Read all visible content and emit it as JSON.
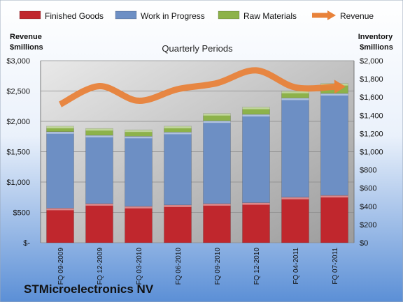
{
  "company": "STMicroelectronics NV",
  "chart_data": {
    "type": "bar",
    "stacked": true,
    "title": "Quarterly Periods",
    "ylabel_left": "Revenue\n$millions",
    "ylabel_right": "Inventory\n$millions",
    "categories": [
      "FQ 09-2009",
      "FQ 12-2009",
      "FQ 03-2010",
      "FQ 06-2010",
      "FQ 09-2010",
      "FQ 12-2010",
      "FQ 04-2011",
      "FQ 07-2011"
    ],
    "series": [
      {
        "name": "Finished Goods",
        "axis": "right",
        "values": [
          380,
          430,
          400,
          415,
          430,
          440,
          500,
          520
        ],
        "color": "#c0272d"
      },
      {
        "name": "Work in Progress",
        "axis": "right",
        "values": [
          840,
          750,
          770,
          800,
          910,
          970,
          1090,
          1120
        ],
        "color": "#6d8fc4"
      },
      {
        "name": "Raw Materials",
        "axis": "right",
        "values": [
          60,
          75,
          70,
          65,
          80,
          80,
          75,
          110
        ],
        "color": "#8db24a"
      },
      {
        "name": "Revenue",
        "type": "line",
        "axis": "left",
        "values": [
          2280,
          2580,
          2340,
          2530,
          2630,
          2840,
          2560,
          2570
        ],
        "color": "#e8823a"
      }
    ],
    "left_axis": {
      "ylim": [
        0,
        3000
      ],
      "ticks": [
        0,
        500,
        1000,
        1500,
        2000,
        2500,
        3000
      ],
      "tick_labels": [
        "$-",
        "$500",
        "$1,000",
        "$1,500",
        "$2,000",
        "$2,500",
        "$3,000"
      ]
    },
    "right_axis": {
      "ylim": [
        0,
        2000
      ],
      "ticks": [
        0,
        200,
        400,
        600,
        800,
        1000,
        1200,
        1400,
        1600,
        1800,
        2000
      ],
      "tick_labels": [
        "$0",
        "$200",
        "$400",
        "$600",
        "$800",
        "$1,000",
        "$1,200",
        "$1,400",
        "$1,600",
        "$1,800",
        "$2,000"
      ]
    },
    "legend_position": "top",
    "grid": true
  }
}
